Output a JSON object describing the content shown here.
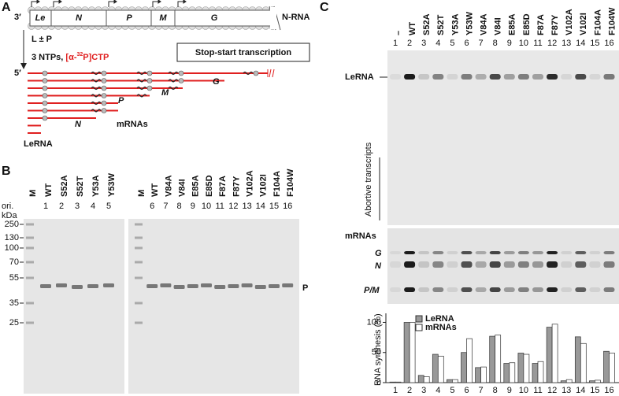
{
  "panels": {
    "A": {
      "letter": "A",
      "prime3": "3′",
      "prime5": "5′",
      "genes": [
        "Le",
        "N",
        "P",
        "M",
        "G"
      ],
      "nrna": "N-RNA",
      "step1": "L ± P",
      "step2": [
        "3 NTPs, ",
        "[α-",
        "32",
        "P]CTP"
      ],
      "box": "Stop-start transcription",
      "mrna_labels": [
        "N",
        "P",
        "M",
        "G"
      ],
      "mrnas": "mRNAs",
      "lerna": "LeRNA"
    },
    "B": {
      "letter": "B",
      "ori": "ori.",
      "kda": "kDa",
      "markers": [
        "250",
        "130",
        "100",
        "70",
        "55",
        "35",
        "25"
      ],
      "gel1": {
        "lanes": [
          "M",
          "WT",
          "S52A",
          "S52T",
          "Y53A",
          "Y53W"
        ],
        "numbers": [
          "1",
          "2",
          "3",
          "4",
          "5"
        ]
      },
      "gel2": {
        "lanes": [
          "M",
          "WT",
          "V84A",
          "V84I",
          "E85A",
          "E85D",
          "F87A",
          "F87Y",
          "V102A",
          "V102I",
          "F104A",
          "F104W"
        ],
        "numbers": [
          "6",
          "7",
          "8",
          "9",
          "10",
          "11",
          "12",
          "13",
          "14",
          "15",
          "16"
        ]
      },
      "band": "P"
    },
    "C": {
      "letter": "C",
      "lanes": [
        "–",
        "WT",
        "S52A",
        "S52T",
        "Y53A",
        "Y53W",
        "V84A",
        "V84I",
        "E85A",
        "E85D",
        "F87A",
        "F87Y",
        "V102A",
        "V102I",
        "F104A",
        "F104W"
      ],
      "numbers": [
        "1",
        "2",
        "3",
        "4",
        "5",
        "6",
        "7",
        "8",
        "9",
        "10",
        "11",
        "12",
        "13",
        "14",
        "15",
        "16"
      ],
      "lerna": "LeRNA",
      "abortive": "Abortive transcripts",
      "mrnas": "mRNAs",
      "bands": [
        "G",
        "N",
        "P/M"
      ]
    }
  },
  "chart_data": {
    "type": "bar",
    "y_label": "RNA synthesis (%)",
    "categories": [
      "1",
      "2",
      "3",
      "4",
      "5",
      "6",
      "7",
      "8",
      "9",
      "10",
      "11",
      "12",
      "13",
      "14",
      "15",
      "16"
    ],
    "series": [
      {
        "name": "LeRNA",
        "color": "#999999",
        "values": [
          1,
          100,
          12,
          47,
          5,
          50,
          25,
          77,
          32,
          49,
          32,
          92,
          3,
          76,
          3,
          52
        ]
      },
      {
        "name": "mRNAs",
        "color": "#ffffff",
        "values": [
          1,
          100,
          10,
          44,
          5,
          73,
          26,
          79,
          33,
          47,
          35,
          97,
          5,
          65,
          4,
          49
        ]
      }
    ],
    "ylim": [
      0,
      115
    ],
    "yticks": [
      0,
      50,
      100
    ]
  }
}
